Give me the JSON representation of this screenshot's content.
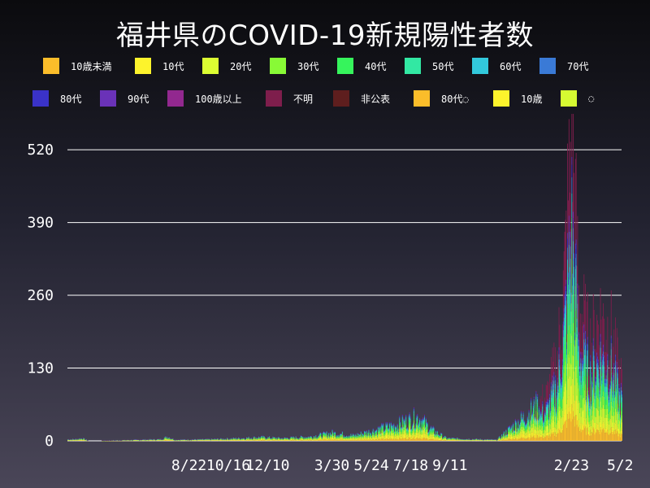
{
  "title": "福井県のCOVID-19新規陽性者数",
  "legend": [
    {
      "label": "10歳未満",
      "color": "#fbbd2a"
    },
    {
      "label": "10代",
      "color": "#fdf32c"
    },
    {
      "label": "20代",
      "color": "#dcfd32"
    },
    {
      "label": "30代",
      "color": "#88fa36"
    },
    {
      "label": "40代",
      "color": "#36f45c"
    },
    {
      "label": "50代",
      "color": "#32e8a3"
    },
    {
      "label": "60代",
      "color": "#32c9dc"
    },
    {
      "label": "70代",
      "color": "#3a7ad6"
    },
    {
      "label": "80代",
      "color": "#3a32c8"
    },
    {
      "label": "90代",
      "color": "#6a32b8"
    },
    {
      "label": "100歳以上",
      "color": "#92288f"
    },
    {
      "label": "不明",
      "color": "#7e1e4c"
    },
    {
      "label": "非公表",
      "color": "#5e1e1e"
    },
    {
      "label": "80代◌",
      "color": "#fbbd2a"
    },
    {
      "label": "10歳",
      "color": "#fdf32c"
    },
    {
      "label": "◌",
      "color": "#d6fa32"
    }
  ],
  "chart_data": {
    "type": "bar",
    "stacked": true,
    "title": "福井県のCOVID-19新規陽性者数",
    "xlabel": "",
    "ylabel": "",
    "ylim": [
      0,
      555
    ],
    "yticks": [
      0,
      130,
      260,
      390,
      520
    ],
    "grid": true,
    "n_days": 850,
    "xticks": [
      {
        "day": 370,
        "label": "8/22"
      },
      {
        "day": 425,
        "label": "10/16"
      },
      {
        "day": 480,
        "label": "12/10"
      },
      {
        "day": 570,
        "label": "3/30"
      },
      {
        "day": 625,
        "label": "5/24"
      },
      {
        "day": 680,
        "label": "7/18"
      },
      {
        "day": 735,
        "label": "9/11"
      },
      {
        "day": 905,
        "label": "2/23"
      },
      {
        "day": 973,
        "label": "5/2"
      }
    ],
    "day_range": [
      200,
      975
    ],
    "series_order": [
      "10歳未満",
      "10代",
      "20代",
      "30代",
      "40代",
      "50代",
      "60代",
      "70代",
      "80代",
      "90代",
      "不明"
    ],
    "daily_totals_approx": [
      {
        "day": 210,
        "value": 3
      },
      {
        "day": 220,
        "value": 5
      },
      {
        "day": 230,
        "value": 0
      },
      {
        "day": 300,
        "value": 2
      },
      {
        "day": 330,
        "value": 3
      },
      {
        "day": 340,
        "value": 8
      },
      {
        "day": 350,
        "value": 2
      },
      {
        "day": 400,
        "value": 3
      },
      {
        "day": 440,
        "value": 5
      },
      {
        "day": 470,
        "value": 7
      },
      {
        "day": 500,
        "value": 5
      },
      {
        "day": 540,
        "value": 8
      },
      {
        "day": 570,
        "value": 15
      },
      {
        "day": 600,
        "value": 10
      },
      {
        "day": 630,
        "value": 20
      },
      {
        "day": 660,
        "value": 30
      },
      {
        "day": 690,
        "value": 45
      },
      {
        "day": 710,
        "value": 20
      },
      {
        "day": 730,
        "value": 5
      },
      {
        "day": 800,
        "value": 2
      },
      {
        "day": 870,
        "value": 80
      },
      {
        "day": 885,
        "value": 150
      },
      {
        "day": 895,
        "value": 300
      },
      {
        "day": 905,
        "value": 555
      },
      {
        "day": 915,
        "value": 250
      },
      {
        "day": 930,
        "value": 170
      },
      {
        "day": 945,
        "value": 220
      },
      {
        "day": 960,
        "value": 190
      },
      {
        "day": 973,
        "value": 110
      }
    ]
  }
}
